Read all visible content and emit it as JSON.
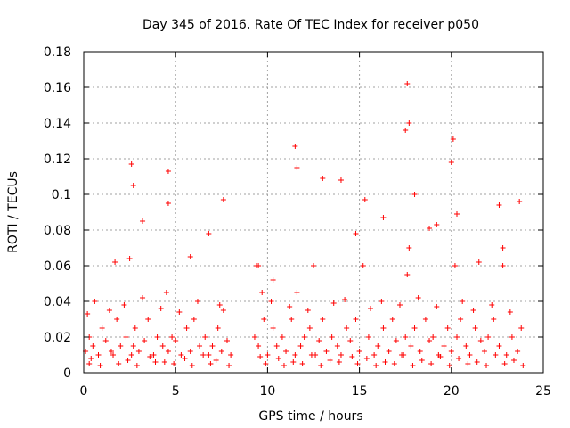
{
  "chart_data": {
    "type": "scatter",
    "title": "Day 345 of 2016, Rate Of TEC Index for receiver p050",
    "xlabel": "GPS time / hours",
    "ylabel": "ROTI / TECUs",
    "xlim": [
      0,
      25
    ],
    "ylim": [
      0,
      0.18
    ],
    "x_ticks": [
      "0",
      "5",
      "10",
      "15",
      "20",
      "25"
    ],
    "y_ticks": [
      "0",
      "0.02",
      "0.04",
      "0.06",
      "0.08",
      "0.1",
      "0.12",
      "0.14",
      "0.16",
      "0.18"
    ],
    "grid": true,
    "marker": "+",
    "series": [
      {
        "name": "ROTI",
        "color": "#ff0000",
        "x": [
          0.1,
          0.2,
          0.3,
          0.5,
          0.8,
          1.0,
          1.2,
          1.5,
          1.8,
          2.0,
          2.3,
          2.5,
          2.6,
          2.7,
          2.8,
          3.0,
          3.3,
          3.5,
          3.8,
          4.0,
          4.3,
          4.5,
          4.6,
          4.8,
          5.0,
          5.3,
          5.6,
          5.8,
          6.0,
          6.3,
          6.6,
          6.8,
          7.0,
          7.3,
          7.5,
          7.6,
          7.8,
          8.0,
          9.3,
          9.4,
          9.5,
          9.8,
          10.0,
          10.3,
          10.5,
          10.8,
          11.0,
          11.3,
          11.5,
          11.6,
          11.8,
          12.0,
          12.3,
          12.6,
          12.8,
          13.0,
          13.2,
          13.5,
          13.8,
          14.0,
          14.3,
          14.5,
          14.8,
          15.0,
          15.2,
          15.5,
          15.8,
          16.0,
          16.3,
          16.6,
          16.8,
          17.0,
          17.3,
          17.5,
          17.6,
          17.7,
          17.8,
          18.0,
          18.3,
          18.6,
          18.8,
          19.0,
          19.3,
          19.6,
          19.8,
          20.0,
          20.2,
          20.3,
          20.5,
          20.8,
          21.0,
          21.3,
          21.6,
          21.8,
          22.0,
          22.3,
          22.6,
          22.8,
          23.0,
          23.3,
          23.6,
          23.8,
          0.4,
          1.6,
          2.4,
          3.6,
          4.4,
          5.5,
          6.5,
          7.2,
          9.6,
          10.6,
          11.4,
          12.4,
          13.4,
          14.6,
          15.4,
          16.4,
          17.4,
          18.4,
          19.4,
          20.4,
          21.4,
          22.4,
          23.4,
          0.6,
          1.4,
          2.2,
          3.2,
          4.2,
          5.2,
          6.2,
          7.4,
          9.7,
          10.2,
          11.2,
          12.2,
          13.6,
          14.2,
          15.6,
          16.2,
          17.2,
          18.2,
          19.2,
          20.6,
          21.2,
          22.2,
          23.2,
          2.6,
          2.7,
          4.6,
          4.6,
          7.6,
          11.5,
          11.6,
          13.0,
          14.0,
          15.3,
          17.5,
          17.6,
          17.7,
          18.0,
          19.2,
          20.0,
          20.1,
          20.3,
          22.6,
          22.8,
          23.7,
          1.7,
          3.2,
          5.8,
          6.8,
          9.5,
          10.3,
          12.5,
          14.8,
          16.3,
          18.8,
          21.5,
          0.3,
          0.9,
          1.9,
          2.9,
          3.9,
          4.9,
          5.9,
          6.9,
          7.9,
          9.9,
          10.9,
          11.9,
          12.9,
          13.9,
          14.9,
          15.9,
          16.9,
          17.9,
          18.9,
          19.9,
          20.9,
          21.9,
          22.9,
          23.9
        ],
        "y": [
          0.012,
          0.033,
          0.02,
          0.015,
          0.01,
          0.025,
          0.018,
          0.012,
          0.03,
          0.015,
          0.02,
          0.064,
          0.01,
          0.015,
          0.025,
          0.012,
          0.018,
          0.03,
          0.01,
          0.02,
          0.015,
          0.045,
          0.012,
          0.02,
          0.018,
          0.01,
          0.025,
          0.012,
          0.03,
          0.015,
          0.02,
          0.01,
          0.015,
          0.025,
          0.012,
          0.035,
          0.018,
          0.01,
          0.02,
          0.06,
          0.015,
          0.03,
          0.01,
          0.025,
          0.015,
          0.02,
          0.012,
          0.03,
          0.01,
          0.045,
          0.015,
          0.02,
          0.025,
          0.01,
          0.018,
          0.03,
          0.012,
          0.02,
          0.015,
          0.01,
          0.025,
          0.018,
          0.03,
          0.012,
          0.06,
          0.02,
          0.01,
          0.015,
          0.025,
          0.012,
          0.03,
          0.018,
          0.01,
          0.02,
          0.055,
          0.07,
          0.015,
          0.025,
          0.012,
          0.03,
          0.018,
          0.02,
          0.01,
          0.015,
          0.025,
          0.012,
          0.06,
          0.02,
          0.03,
          0.015,
          0.01,
          0.025,
          0.018,
          0.012,
          0.02,
          0.03,
          0.015,
          0.06,
          0.01,
          0.02,
          0.012,
          0.025,
          0.008,
          0.01,
          0.007,
          0.009,
          0.006,
          0.008,
          0.01,
          0.007,
          0.009,
          0.008,
          0.006,
          0.01,
          0.007,
          0.009,
          0.008,
          0.006,
          0.01,
          0.007,
          0.009,
          0.008,
          0.006,
          0.01,
          0.007,
          0.04,
          0.035,
          0.038,
          0.042,
          0.036,
          0.034,
          0.04,
          0.038,
          0.045,
          0.04,
          0.037,
          0.035,
          0.039,
          0.041,
          0.036,
          0.04,
          0.038,
          0.042,
          0.037,
          0.04,
          0.035,
          0.038,
          0.034,
          0.117,
          0.105,
          0.113,
          0.095,
          0.097,
          0.127,
          0.115,
          0.109,
          0.108,
          0.097,
          0.136,
          0.162,
          0.14,
          0.1,
          0.083,
          0.118,
          0.131,
          0.089,
          0.094,
          0.07,
          0.096,
          0.062,
          0.085,
          0.065,
          0.078,
          0.06,
          0.052,
          0.06,
          0.078,
          0.087,
          0.081,
          0.062,
          0.005,
          0.004,
          0.005,
          0.004,
          0.006,
          0.005,
          0.004,
          0.005,
          0.004,
          0.005,
          0.004,
          0.005,
          0.004,
          0.006,
          0.005,
          0.004,
          0.005,
          0.004,
          0.005,
          0.004,
          0.005,
          0.004,
          0.005,
          0.004
        ]
      }
    ]
  }
}
